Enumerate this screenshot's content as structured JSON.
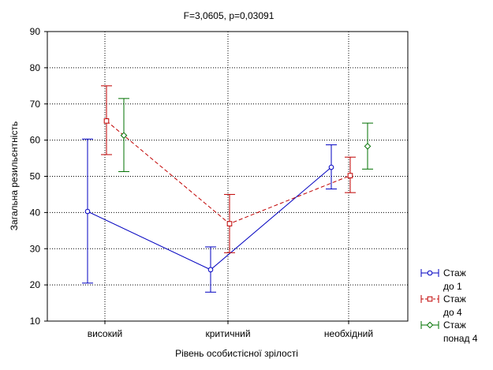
{
  "chart_data": {
    "type": "line",
    "title": "F=3,0605, p=0,03091",
    "xlabel": "Рівень особистісної зрілості",
    "ylabel": "Загальна резильєнтність",
    "categories": [
      "високий",
      "критичний",
      "необхідний"
    ],
    "ylim": [
      10,
      90
    ],
    "yticks": [
      10,
      20,
      30,
      40,
      50,
      60,
      70,
      80,
      90
    ],
    "grid": true,
    "legend_position": "bottom-right",
    "series": [
      {
        "name": "Стаж до 1",
        "legend_lines": [
          "Стаж",
          "до 1"
        ],
        "color": "#0000c0",
        "dash": "solid",
        "marker": "circle",
        "values": [
          40.3,
          24.2,
          52.5
        ],
        "lower": [
          20.5,
          18.0,
          46.5
        ],
        "upper": [
          60.3,
          30.5,
          58.7
        ]
      },
      {
        "name": "Стаж до 4",
        "legend_lines": [
          "Стаж",
          "до 4"
        ],
        "color": "#c00000",
        "dash": "dashed",
        "marker": "square",
        "values": [
          65.3,
          36.9,
          50.2
        ],
        "lower": [
          56.0,
          28.9,
          45.5
        ],
        "upper": [
          75.0,
          45.0,
          55.3
        ]
      },
      {
        "name": "Стаж понад 4",
        "legend_lines": [
          "Стаж",
          "понад 4"
        ],
        "color": "#007000",
        "dash": "none",
        "marker": "diamond",
        "values": [
          61.3,
          null,
          58.3
        ],
        "lower": [
          51.3,
          null,
          52.0
        ],
        "upper": [
          71.5,
          null,
          64.7
        ]
      }
    ]
  }
}
